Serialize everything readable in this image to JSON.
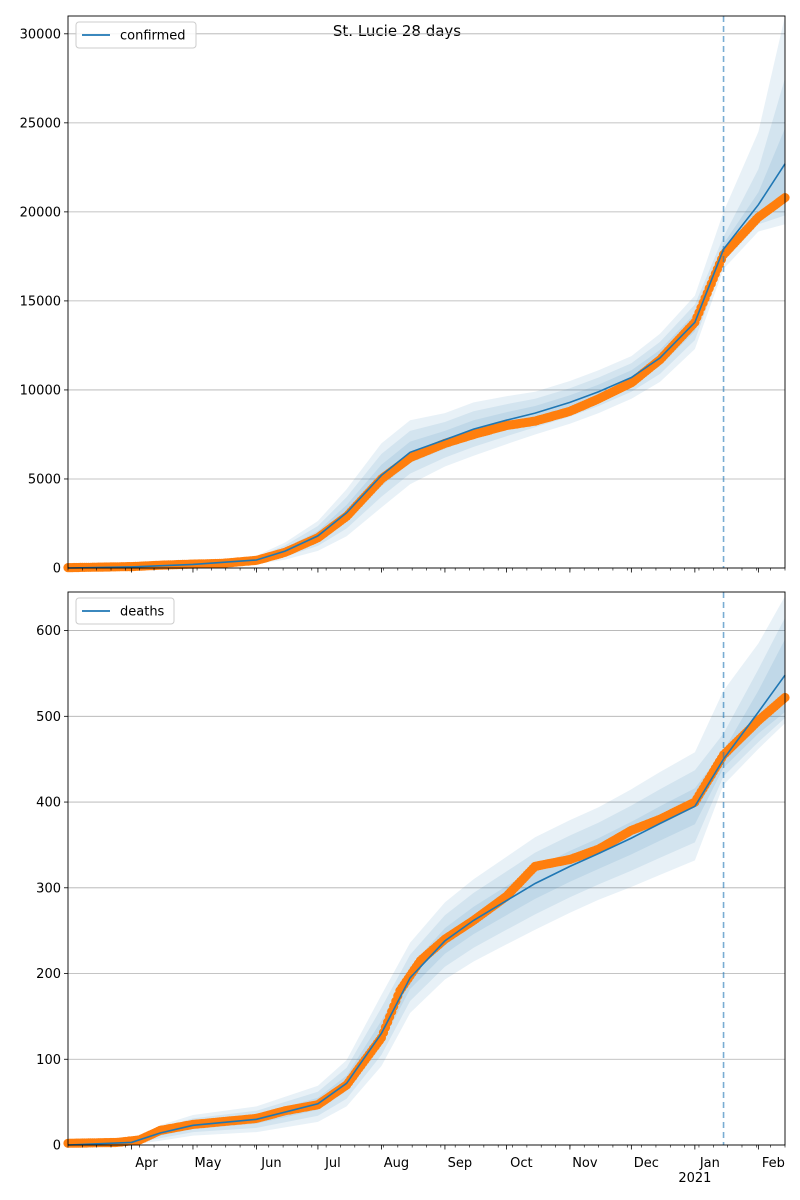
{
  "chart_data": [
    {
      "type": "line",
      "title": "St. Lucie 28 days",
      "legend": {
        "label": "confirmed",
        "placement": "top-left"
      },
      "x_axis": {
        "start": "2020-03-01",
        "end": "2021-02-14",
        "tick_labels": [
          "Apr",
          "May",
          "Jun",
          "Jul",
          "Aug",
          "Sep",
          "Oct",
          "Nov",
          "Dec",
          "Jan",
          "Feb"
        ],
        "tick_dates": [
          "2020-04-01",
          "2020-05-01",
          "2020-06-01",
          "2020-07-01",
          "2020-08-01",
          "2020-09-01",
          "2020-10-01",
          "2020-11-01",
          "2020-12-01",
          "2021-01-01",
          "2021-02-01"
        ],
        "year_label": "2021"
      },
      "y_axis": {
        "ylim": [
          0,
          31000
        ],
        "ticks": [
          0,
          5000,
          10000,
          15000,
          20000,
          25000,
          30000
        ]
      },
      "grid": "horizontal",
      "forecast_start": "2021-01-15",
      "model": {
        "color": "#1f77b4",
        "x": [
          "2020-03-01",
          "2020-04-01",
          "2020-05-01",
          "2020-06-01",
          "2020-06-15",
          "2020-07-01",
          "2020-07-15",
          "2020-08-01",
          "2020-08-15",
          "2020-09-01",
          "2020-09-15",
          "2020-10-01",
          "2020-10-15",
          "2020-11-01",
          "2020-11-15",
          "2020-12-01",
          "2020-12-15",
          "2021-01-01",
          "2021-01-15",
          "2021-02-01",
          "2021-02-14"
        ],
        "y": [
          0,
          60,
          200,
          450,
          950,
          1800,
          3100,
          5200,
          6500,
          7200,
          7800,
          8300,
          8700,
          9300,
          9900,
          10700,
          11800,
          13800,
          17900,
          20400,
          22700
        ],
        "bands": [
          {
            "lower": [
              0,
              50,
              160,
              370,
              790,
              1520,
              2660,
              4600,
              5900,
              6700,
              7300,
              7850,
              8300,
              8900,
              9500,
              10300,
              11350,
              13300,
              17600,
              19700,
              20700
            ],
            "upper": [
              0,
              70,
              240,
              530,
              1110,
              2080,
              3540,
              5800,
              7100,
              7700,
              8300,
              8750,
              9100,
              9700,
              10300,
              11100,
              12250,
              14300,
              18200,
              21100,
              24700
            ]
          },
          {
            "lower": [
              0,
              40,
              120,
              290,
              630,
              1240,
              2220,
              4000,
              5300,
              6200,
              6800,
              7400,
              7900,
              8500,
              9100,
              9900,
              10900,
              12800,
              17200,
              19300,
              19800
            ],
            "upper": [
              0,
              80,
              280,
              610,
              1270,
              2360,
              3980,
              6400,
              7700,
              8200,
              8800,
              9200,
              9500,
              10100,
              10700,
              11500,
              12700,
              14800,
              18600,
              22400,
              27500
            ]
          },
          {
            "lower": [
              0,
              30,
              80,
              210,
              470,
              960,
              1780,
              3400,
              4700,
              5700,
              6300,
              6950,
              7500,
              8100,
              8700,
              9500,
              10450,
              12300,
              16800,
              18900,
              19300
            ],
            "upper": [
              0,
              90,
              320,
              690,
              1430,
              2640,
              4420,
              7000,
              8300,
              8700,
              9300,
              9650,
              9900,
              10500,
              11100,
              11900,
              13150,
              15300,
              20000,
              24500,
              31000
            ]
          }
        ]
      },
      "observed": {
        "color": "#ff7f0e",
        "x": [
          "2020-03-01",
          "2020-04-01",
          "2020-04-15",
          "2020-05-01",
          "2020-05-15",
          "2020-06-01",
          "2020-06-15",
          "2020-07-01",
          "2020-07-15",
          "2020-08-01",
          "2020-08-15",
          "2020-09-01",
          "2020-09-15",
          "2020-10-01",
          "2020-10-15",
          "2020-11-01",
          "2020-11-15",
          "2020-12-01",
          "2020-12-15",
          "2021-01-01",
          "2021-01-15",
          "2021-02-01",
          "2021-02-14"
        ],
        "y": [
          20,
          80,
          160,
          220,
          260,
          430,
          880,
          1700,
          2900,
          5000,
          6200,
          7000,
          7500,
          8000,
          8250,
          8800,
          9500,
          10400,
          11700,
          13800,
          17600,
          19700,
          20800
        ]
      }
    },
    {
      "type": "line",
      "title": "",
      "legend": {
        "label": "deaths",
        "placement": "top-left"
      },
      "x_axis": {
        "start": "2020-03-01",
        "end": "2021-02-14",
        "tick_labels": [
          "Apr",
          "May",
          "Jun",
          "Jul",
          "Aug",
          "Sep",
          "Oct",
          "Nov",
          "Dec",
          "Jan",
          "Feb"
        ],
        "tick_dates": [
          "2020-04-01",
          "2020-05-01",
          "2020-06-01",
          "2020-07-01",
          "2020-08-01",
          "2020-09-01",
          "2020-10-01",
          "2020-11-01",
          "2020-12-01",
          "2021-01-01",
          "2021-02-01"
        ],
        "year_label": "2021"
      },
      "y_axis": {
        "ylim": [
          0,
          645
        ],
        "ticks": [
          0,
          100,
          200,
          300,
          400,
          500,
          600
        ]
      },
      "grid": "horizontal",
      "forecast_start": "2021-01-15",
      "model": {
        "color": "#1f77b4",
        "x": [
          "2020-03-01",
          "2020-04-01",
          "2020-04-15",
          "2020-05-01",
          "2020-06-01",
          "2020-07-01",
          "2020-07-15",
          "2020-08-01",
          "2020-08-15",
          "2020-09-01",
          "2020-09-15",
          "2020-10-01",
          "2020-10-15",
          "2020-11-01",
          "2020-11-15",
          "2020-12-01",
          "2020-12-15",
          "2021-01-01",
          "2021-01-15",
          "2021-02-01",
          "2021-02-14"
        ],
        "y": [
          0,
          3,
          14,
          23,
          30,
          48,
          72,
          130,
          195,
          238,
          262,
          285,
          305,
          325,
          340,
          358,
          375,
          395,
          450,
          505,
          548
        ],
        "bands": [
          {
            "lower": [
              0,
              2,
              11,
              19,
              25,
              41,
              63,
              118,
              182,
              223,
              246,
              268,
              287,
              307,
              322,
              339,
              355,
              374,
              440,
              480,
              505
            ],
            "upper": [
              0,
              4,
              17,
              27,
              35,
              55,
              81,
              145,
              208,
              253,
              278,
              302,
              323,
              343,
              358,
              377,
              395,
              416,
              460,
              530,
              590
            ]
          },
          {
            "lower": [
              0,
              1,
              8,
              15,
              20,
              34,
              54,
              105,
              168,
              208,
              230,
              251,
              269,
              289,
              304,
              320,
              335,
              353,
              430,
              470,
              498
            ],
            "upper": [
              0,
              5,
              20,
              31,
              40,
              62,
              90,
              160,
              222,
              268,
              294,
              319,
              341,
              361,
              376,
              396,
              415,
              437,
              480,
              555,
              615
            ]
          },
          {
            "lower": [
              0,
              0,
              5,
              11,
              15,
              27,
              45,
              92,
              154,
              193,
              214,
              234,
              251,
              271,
              286,
              301,
              315,
              332,
              420,
              462,
              492
            ],
            "upper": [
              0,
              6,
              23,
              35,
              45,
              69,
              99,
              175,
              236,
              283,
              310,
              336,
              359,
              379,
              394,
              415,
              435,
              458,
              530,
              585,
              640
            ]
          }
        ]
      },
      "observed": {
        "color": "#ff7f0e",
        "x": [
          "2020-03-01",
          "2020-03-25",
          "2020-04-05",
          "2020-04-15",
          "2020-05-01",
          "2020-06-01",
          "2020-06-15",
          "2020-07-01",
          "2020-07-15",
          "2020-08-01",
          "2020-08-10",
          "2020-08-20",
          "2020-09-01",
          "2020-09-15",
          "2020-10-01",
          "2020-10-15",
          "2020-11-01",
          "2020-11-15",
          "2020-12-01",
          "2020-12-15",
          "2021-01-01",
          "2021-01-15",
          "2021-02-01",
          "2021-02-14"
        ],
        "y": [
          2,
          3,
          6,
          17,
          24,
          31,
          40,
          47,
          70,
          125,
          180,
          215,
          240,
          262,
          290,
          325,
          333,
          345,
          367,
          380,
          400,
          455,
          495,
          522
        ]
      }
    }
  ]
}
